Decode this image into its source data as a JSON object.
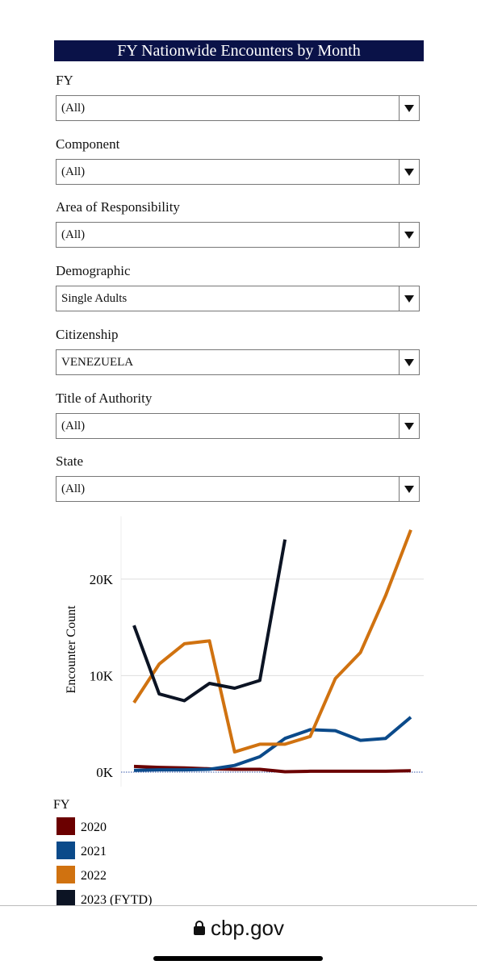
{
  "header": {
    "title": "FY Nationwide Encounters by Month"
  },
  "filters": [
    {
      "label": "FY",
      "value": "(All)"
    },
    {
      "label": "Component",
      "value": "(All)"
    },
    {
      "label": "Area of Responsibility",
      "value": "(All)"
    },
    {
      "label": "Demographic",
      "value": "Single Adults"
    },
    {
      "label": "Citizenship",
      "value": "VENEZUELA"
    },
    {
      "label": "Title of Authority",
      "value": "(All)"
    },
    {
      "label": "State",
      "value": "(All)"
    }
  ],
  "chart_data": {
    "type": "line",
    "y_label": "Encounter Count",
    "legend_title": "FY",
    "ylim": [
      -1500,
      26500
    ],
    "yticks": [
      {
        "value": 0,
        "label": "0K"
      },
      {
        "value": 10000,
        "label": "10K"
      },
      {
        "value": 20000,
        "label": "20K"
      }
    ],
    "grid": true,
    "series": [
      {
        "name": "2020",
        "color": "#6b0000",
        "values": [
          600,
          500,
          450,
          350,
          300,
          300,
          50,
          100,
          100,
          100,
          100,
          150
        ]
      },
      {
        "name": "2021",
        "color": "#0b4a8a",
        "values": [
          200,
          250,
          250,
          300,
          700,
          1600,
          3500,
          4400,
          4300,
          3300,
          3500,
          5700
        ]
      },
      {
        "name": "2022",
        "color": "#d07210",
        "values": [
          7200,
          11200,
          13300,
          13600,
          2100,
          2900,
          2900,
          3700,
          9700,
          12400,
          18300,
          25100
        ]
      },
      {
        "name": "2023 (FYTD)",
        "color": "#0c1424",
        "values": [
          15200,
          8100,
          7400,
          9200,
          8700,
          9500,
          24100,
          null,
          null,
          null,
          null,
          null
        ]
      }
    ]
  },
  "footer": {
    "url": "cbp.gov"
  }
}
